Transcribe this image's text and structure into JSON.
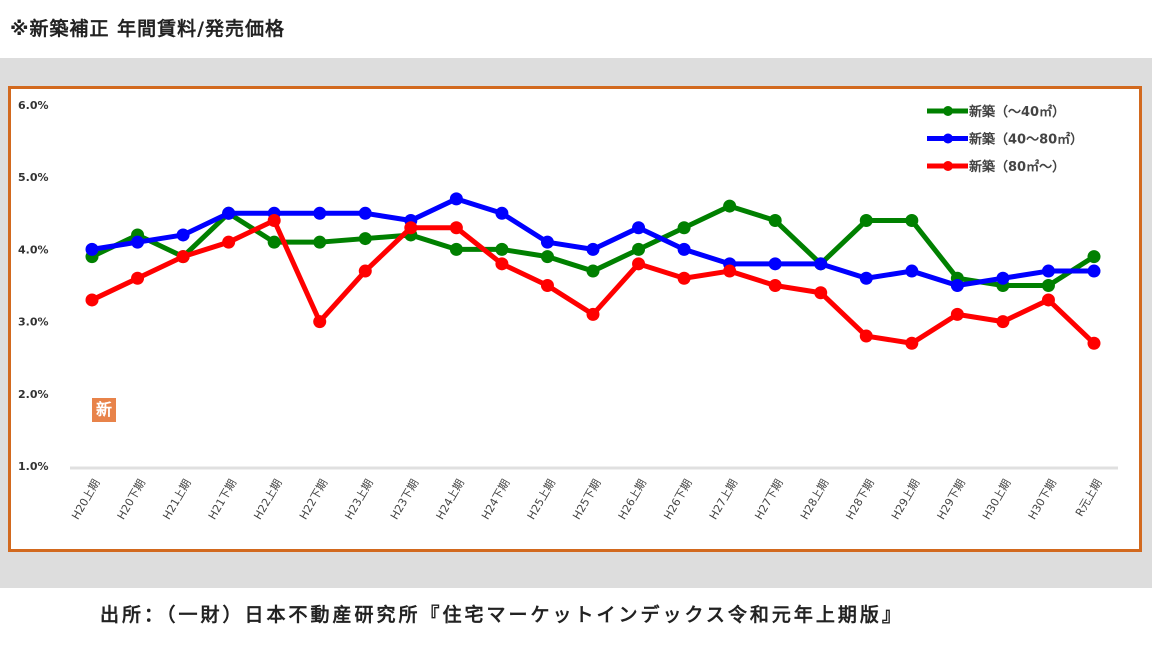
{
  "title": "※新築補正 年間賃料/発売価格",
  "source": "出所：（一財）日本不動産研究所『住宅マーケットインデックス令和元年上期版』",
  "badge": "新",
  "chart_data": {
    "type": "line",
    "title": "※新築補正 年間賃料/発売価格",
    "xlabel": "",
    "ylabel": "",
    "ylim": [
      1.0,
      6.0
    ],
    "yticks": [
      "1.0%",
      "2.0%",
      "3.0%",
      "4.0%",
      "5.0%",
      "6.0%"
    ],
    "legend_position": "top-right",
    "categories": [
      "H20上期",
      "H20下期",
      "H21上期",
      "H21下期",
      "H22上期",
      "H22下期",
      "H23上期",
      "H23下期",
      "H24上期",
      "H24下期",
      "H25上期",
      "H25下期",
      "H26上期",
      "H26下期",
      "H27上期",
      "H27下期",
      "H28上期",
      "H28下期",
      "H29上期",
      "H29下期",
      "H30上期",
      "H30下期",
      "R元上期"
    ],
    "series": [
      {
        "name": "新築（～40㎡）",
        "color": "#008000",
        "values": [
          3.9,
          4.2,
          3.9,
          4.5,
          4.1,
          4.1,
          4.15,
          4.2,
          4.0,
          4.0,
          3.9,
          3.7,
          4.0,
          4.3,
          4.6,
          4.4,
          3.8,
          4.4,
          4.4,
          3.6,
          3.5,
          3.5,
          3.9
        ]
      },
      {
        "name": "新築（40～80㎡）",
        "color": "#0000ff",
        "values": [
          4.0,
          4.1,
          4.2,
          4.5,
          4.5,
          4.5,
          4.5,
          4.4,
          4.7,
          4.5,
          4.1,
          4.0,
          4.3,
          4.0,
          3.8,
          3.8,
          3.8,
          3.6,
          3.7,
          3.5,
          3.6,
          3.7,
          3.7
        ]
      },
      {
        "name": "新築（80㎡～）",
        "color": "#ff0000",
        "values": [
          3.3,
          3.6,
          3.9,
          4.1,
          4.4,
          3.0,
          3.7,
          4.3,
          4.3,
          3.8,
          3.5,
          3.1,
          3.8,
          3.6,
          3.7,
          3.5,
          3.4,
          2.8,
          2.7,
          3.1,
          3.0,
          3.3,
          2.7
        ]
      }
    ]
  }
}
